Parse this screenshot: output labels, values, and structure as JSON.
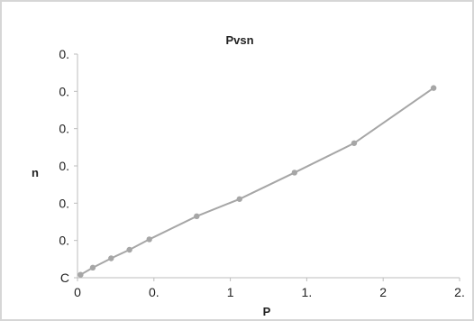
{
  "chart_data": {
    "type": "scatter",
    "title": "Pvsn",
    "xlabel": "P",
    "ylabel": "n",
    "xlim": [
      0,
      2.5
    ],
    "ylim": [
      0,
      0.6
    ],
    "x_tick_values": [
      0,
      0.5,
      1,
      1.5,
      2,
      2.5
    ],
    "x_tick_labels": [
      "0",
      "0.",
      "1",
      "1.",
      "2",
      "2."
    ],
    "y_tick_values": [
      0,
      0.1,
      0.2,
      0.3,
      0.4,
      0.5,
      0.6
    ],
    "y_tick_labels": [
      "C",
      "0.",
      "0.",
      "0.",
      "0.",
      "0.",
      "0."
    ],
    "grid": false,
    "legend": "none",
    "line_color": "#a6a6a6",
    "marker_color": "#a6a6a6",
    "series": [
      {
        "x": [
          0.02,
          0.1,
          0.22,
          0.34,
          0.47,
          0.78,
          1.06,
          1.42,
          1.81,
          2.33
        ],
        "y": [
          0.008,
          0.027,
          0.052,
          0.075,
          0.103,
          0.165,
          0.211,
          0.282,
          0.361,
          0.509
        ]
      }
    ]
  }
}
